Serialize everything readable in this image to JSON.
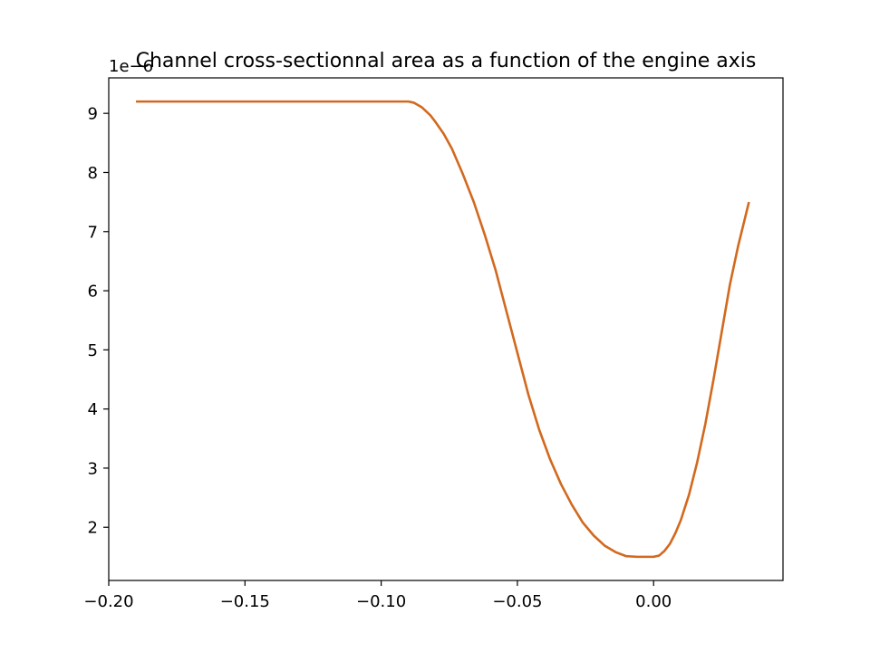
{
  "chart_data": {
    "type": "line",
    "title": "Channel cross-sectionnal area as a function of the engine axis",
    "xlabel": "",
    "ylabel": "",
    "y_offset_label": "1e−6",
    "xlim": [
      -0.2,
      0.0475
    ],
    "ylim": [
      1.1,
      9.6
    ],
    "x_ticks": [
      -0.2,
      -0.15,
      -0.1,
      -0.05,
      0.0
    ],
    "x_tick_labels": [
      "−0.20",
      "−0.15",
      "−0.10",
      "−0.05",
      "0.00"
    ],
    "y_ticks": [
      2,
      3,
      4,
      5,
      6,
      7,
      8,
      9
    ],
    "y_tick_labels": [
      "2",
      "3",
      "4",
      "5",
      "6",
      "7",
      "8",
      "9"
    ],
    "grid": false,
    "series": [
      {
        "color": "#d2691e",
        "x": [
          -0.19,
          -0.17,
          -0.15,
          -0.13,
          -0.11,
          -0.095,
          -0.09,
          -0.088,
          -0.085,
          -0.082,
          -0.08,
          -0.077,
          -0.074,
          -0.07,
          -0.066,
          -0.062,
          -0.058,
          -0.054,
          -0.05,
          -0.046,
          -0.042,
          -0.038,
          -0.034,
          -0.03,
          -0.026,
          -0.022,
          -0.018,
          -0.014,
          -0.01,
          -0.006,
          -0.003,
          0.0,
          0.002,
          0.004,
          0.006,
          0.008,
          0.01,
          0.013,
          0.016,
          0.019,
          0.022,
          0.025,
          0.028,
          0.031,
          0.035
        ],
        "y": [
          9.2,
          9.2,
          9.2,
          9.2,
          9.2,
          9.2,
          9.2,
          9.18,
          9.1,
          8.97,
          8.85,
          8.65,
          8.4,
          7.97,
          7.5,
          6.95,
          6.35,
          5.65,
          4.95,
          4.25,
          3.65,
          3.15,
          2.73,
          2.38,
          2.08,
          1.86,
          1.69,
          1.58,
          1.51,
          1.5,
          1.5,
          1.5,
          1.52,
          1.6,
          1.72,
          1.9,
          2.12,
          2.55,
          3.1,
          3.75,
          4.5,
          5.3,
          6.1,
          6.75,
          7.5
        ]
      }
    ]
  }
}
